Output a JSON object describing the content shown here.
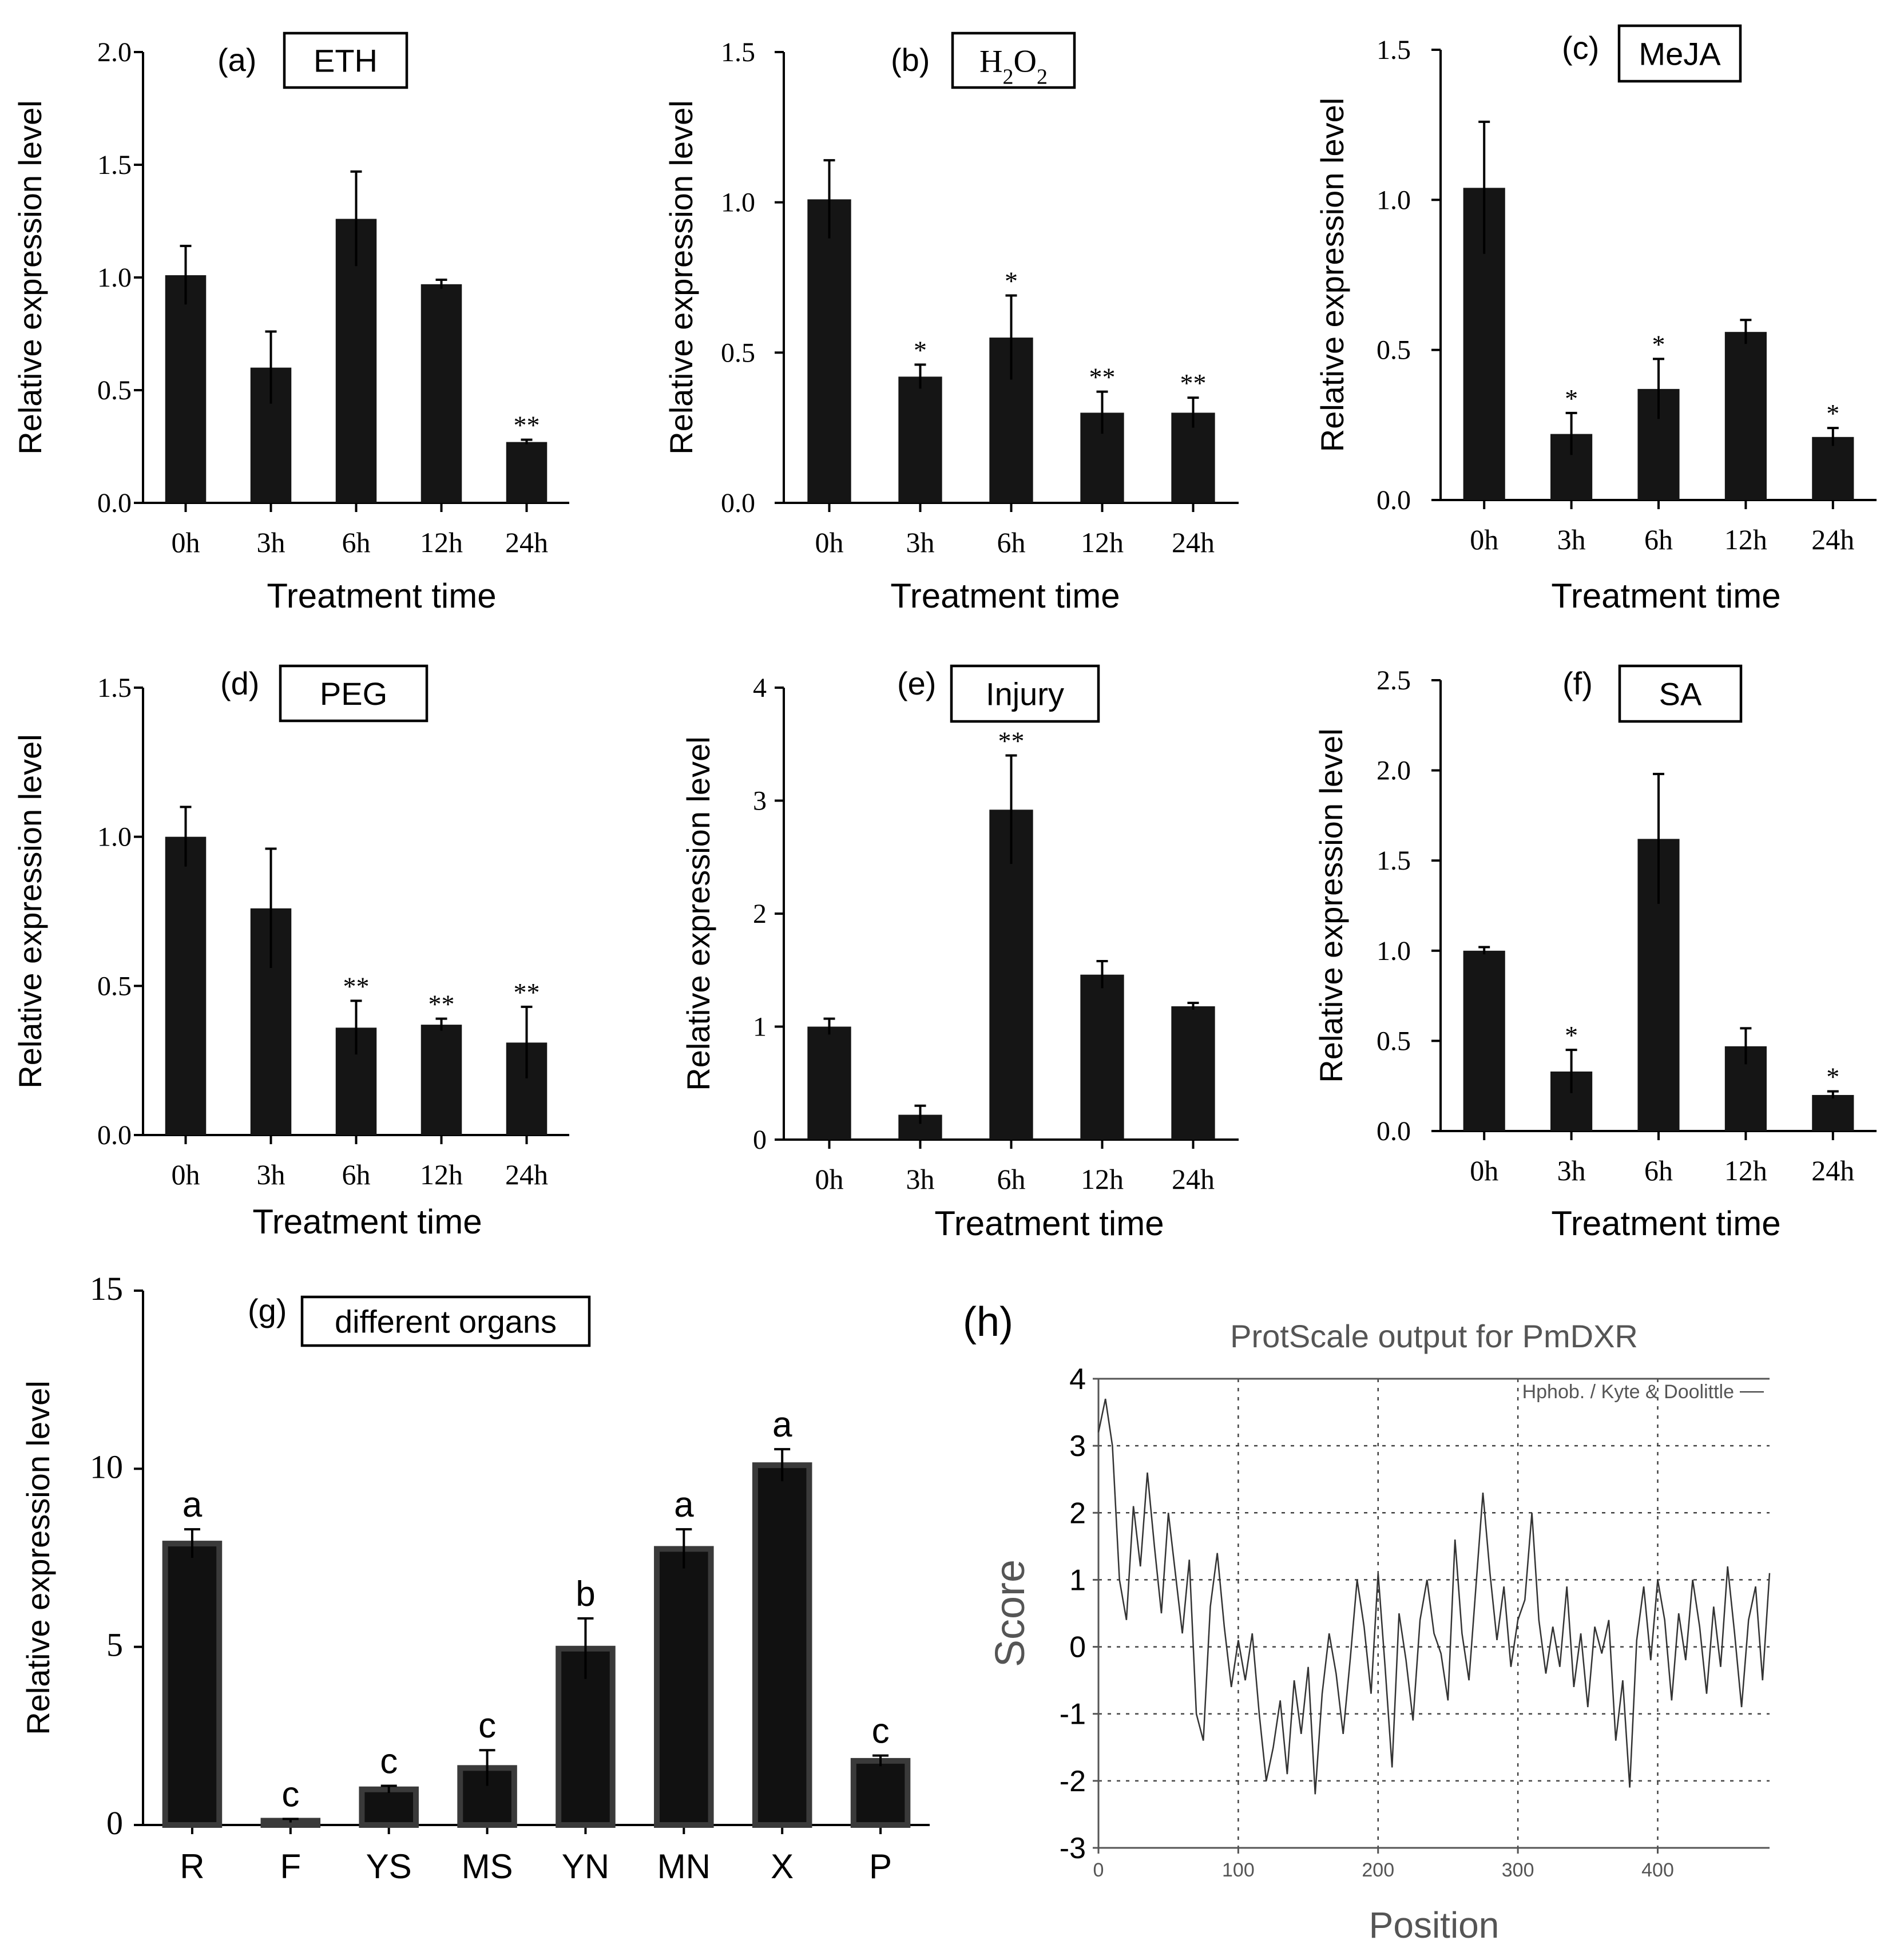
{
  "chart_data": [
    {
      "id": "a",
      "type": "bar",
      "panel_label": "(a)",
      "title": "ETH",
      "categories": [
        "0h",
        "3h",
        "6h",
        "12h",
        "24h"
      ],
      "values": [
        1.01,
        0.6,
        1.26,
        0.97,
        0.27
      ],
      "errors": [
        0.13,
        0.16,
        0.21,
        0.02,
        0.01
      ],
      "significance": [
        "",
        "",
        "",
        "",
        "**"
      ],
      "ylim": [
        0,
        2.0
      ],
      "yticks": [
        "0.0",
        "0.5",
        "1.0",
        "1.5",
        "2.0"
      ],
      "ylabel": "Relative expression level",
      "xlabel": "Treatment time"
    },
    {
      "id": "b",
      "type": "bar",
      "panel_label": "(b)",
      "title": "H2O2",
      "title_main": "H",
      "title_sub1": "2",
      "title_mid": "O",
      "title_sub2": "2",
      "categories": [
        "0h",
        "3h",
        "6h",
        "12h",
        "24h"
      ],
      "values": [
        1.01,
        0.42,
        0.55,
        0.3,
        0.3
      ],
      "errors": [
        0.13,
        0.04,
        0.14,
        0.07,
        0.05
      ],
      "significance": [
        "",
        "*",
        "*",
        "**",
        "**"
      ],
      "ylim": [
        0,
        1.5
      ],
      "yticks": [
        "0.0",
        "0.5",
        "1.0",
        "1.5"
      ],
      "ylabel": "Relative expression level",
      "xlabel": "Treatment time"
    },
    {
      "id": "c",
      "type": "bar",
      "panel_label": "(c)",
      "title": "MeJA",
      "categories": [
        "0h",
        "3h",
        "6h",
        "12h",
        "24h"
      ],
      "values": [
        1.04,
        0.22,
        0.37,
        0.56,
        0.21
      ],
      "errors": [
        0.22,
        0.07,
        0.1,
        0.04,
        0.03
      ],
      "significance": [
        "",
        "*",
        "*",
        "",
        "*"
      ],
      "ylim": [
        0,
        1.5
      ],
      "yticks": [
        "0.0",
        "0.5",
        "1.0",
        "1.5"
      ],
      "ylabel": "Relative expression level",
      "xlabel": "Treatment time"
    },
    {
      "id": "d",
      "type": "bar",
      "panel_label": "(d)",
      "title": "PEG",
      "categories": [
        "0h",
        "3h",
        "6h",
        "12h",
        "24h"
      ],
      "values": [
        1.0,
        0.76,
        0.36,
        0.37,
        0.31
      ],
      "errors": [
        0.1,
        0.2,
        0.09,
        0.02,
        0.12
      ],
      "significance": [
        "",
        "",
        "**",
        "**",
        "**"
      ],
      "ylim": [
        0,
        1.5
      ],
      "yticks": [
        "0.0",
        "0.5",
        "1.0",
        "1.5"
      ],
      "ylabel": "Relative expression level",
      "xlabel": "Treatment time"
    },
    {
      "id": "e",
      "type": "bar",
      "panel_label": "(e)",
      "title": "Injury",
      "categories": [
        "0h",
        "3h",
        "6h",
        "12h",
        "24h"
      ],
      "values": [
        1.0,
        0.22,
        2.92,
        1.46,
        1.18
      ],
      "errors": [
        0.07,
        0.08,
        0.48,
        0.12,
        0.03
      ],
      "significance": [
        "",
        "",
        "**",
        "",
        ""
      ],
      "ylim": [
        0,
        4
      ],
      "yticks": [
        "0",
        "1",
        "2",
        "3",
        "4"
      ],
      "ylabel": "Relative expression level",
      "xlabel": "Treatment time"
    },
    {
      "id": "f",
      "type": "bar",
      "panel_label": "(f)",
      "title": "SA",
      "categories": [
        "0h",
        "3h",
        "6h",
        "12h",
        "24h"
      ],
      "values": [
        1.0,
        0.33,
        1.62,
        0.47,
        0.2
      ],
      "errors": [
        0.02,
        0.12,
        0.36,
        0.1,
        0.02
      ],
      "significance": [
        "",
        "*",
        "",
        "",
        "*"
      ],
      "ylim": [
        0,
        2.5
      ],
      "yticks": [
        "0.0",
        "0.5",
        "1.0",
        "1.5",
        "2.0",
        "2.5"
      ],
      "ylabel": "Relative expression level",
      "xlabel": "Treatment time"
    },
    {
      "id": "g",
      "type": "bar",
      "panel_label": "(g)",
      "title": "different organs",
      "categories": [
        "R",
        "F",
        "YS",
        "MS",
        "YN",
        "MN",
        "X",
        "P"
      ],
      "values": [
        7.9,
        0.12,
        1.0,
        1.6,
        4.95,
        7.75,
        10.1,
        1.8
      ],
      "errors": [
        0.4,
        0.05,
        0.1,
        0.5,
        0.85,
        0.55,
        0.45,
        0.15
      ],
      "significance": [
        "a",
        "c",
        "c",
        "c",
        "b",
        "a",
        "a",
        "c"
      ],
      "ylim": [
        0,
        15
      ],
      "yticks": [
        "0",
        "5",
        "10",
        "15"
      ],
      "ylabel": "Relative expression level",
      "xlabel": ""
    },
    {
      "id": "h",
      "type": "line",
      "panel_label": "(h)",
      "title": "ProtScale output for PmDXR",
      "legend": "Hphob. / Kyte & Doolittle",
      "xlabel": "Position",
      "ylabel": "Score",
      "xlim": [
        0,
        480
      ],
      "ylim": [
        -3,
        4
      ],
      "xticks": [
        "0",
        "100",
        "200",
        "300",
        "400"
      ],
      "yticks": [
        "4",
        "3",
        "2",
        "1",
        "0",
        "-1",
        "-2",
        "-3"
      ],
      "x": [
        0,
        5,
        10,
        15,
        20,
        25,
        30,
        35,
        40,
        45,
        50,
        55,
        60,
        65,
        70,
        75,
        80,
        85,
        90,
        95,
        100,
        105,
        110,
        115,
        120,
        125,
        130,
        135,
        140,
        145,
        150,
        155,
        160,
        165,
        170,
        175,
        180,
        185,
        190,
        195,
        200,
        205,
        210,
        215,
        220,
        225,
        230,
        235,
        240,
        245,
        250,
        255,
        260,
        265,
        270,
        275,
        280,
        285,
        290,
        295,
        300,
        305,
        310,
        315,
        320,
        325,
        330,
        335,
        340,
        345,
        350,
        355,
        360,
        365,
        370,
        375,
        380,
        385,
        390,
        395,
        400,
        405,
        410,
        415,
        420,
        425,
        430,
        435,
        440,
        445,
        450,
        455,
        460,
        465,
        470,
        475,
        480
      ],
      "y": [
        3.2,
        3.7,
        3.0,
        1.0,
        0.4,
        2.1,
        1.2,
        2.6,
        1.5,
        0.5,
        2.0,
        1.1,
        0.2,
        1.3,
        -1.0,
        -1.4,
        0.6,
        1.4,
        0.3,
        -0.6,
        0.1,
        -0.5,
        0.2,
        -1.0,
        -2.0,
        -1.5,
        -0.8,
        -1.9,
        -0.5,
        -1.3,
        -0.3,
        -2.2,
        -0.7,
        0.2,
        -0.4,
        -1.3,
        -0.2,
        1.0,
        0.3,
        -0.7,
        1.1,
        -0.3,
        -1.8,
        0.5,
        -0.2,
        -1.1,
        0.4,
        1.0,
        0.2,
        -0.1,
        -0.8,
        1.6,
        0.2,
        -0.5,
        0.9,
        2.3,
        1.1,
        0.1,
        0.9,
        -0.3,
        0.4,
        0.7,
        2.0,
        0.4,
        -0.4,
        0.3,
        -0.3,
        0.9,
        -0.6,
        0.2,
        -0.9,
        0.3,
        -0.1,
        0.4,
        -1.4,
        -0.5,
        -2.1,
        0.1,
        0.9,
        -0.2,
        1.0,
        0.4,
        -0.8,
        0.5,
        -0.2,
        1.0,
        0.3,
        -0.7,
        0.6,
        -0.3,
        1.2,
        0.2,
        -0.9,
        0.4,
        0.9,
        -0.5,
        1.1
      ]
    }
  ]
}
